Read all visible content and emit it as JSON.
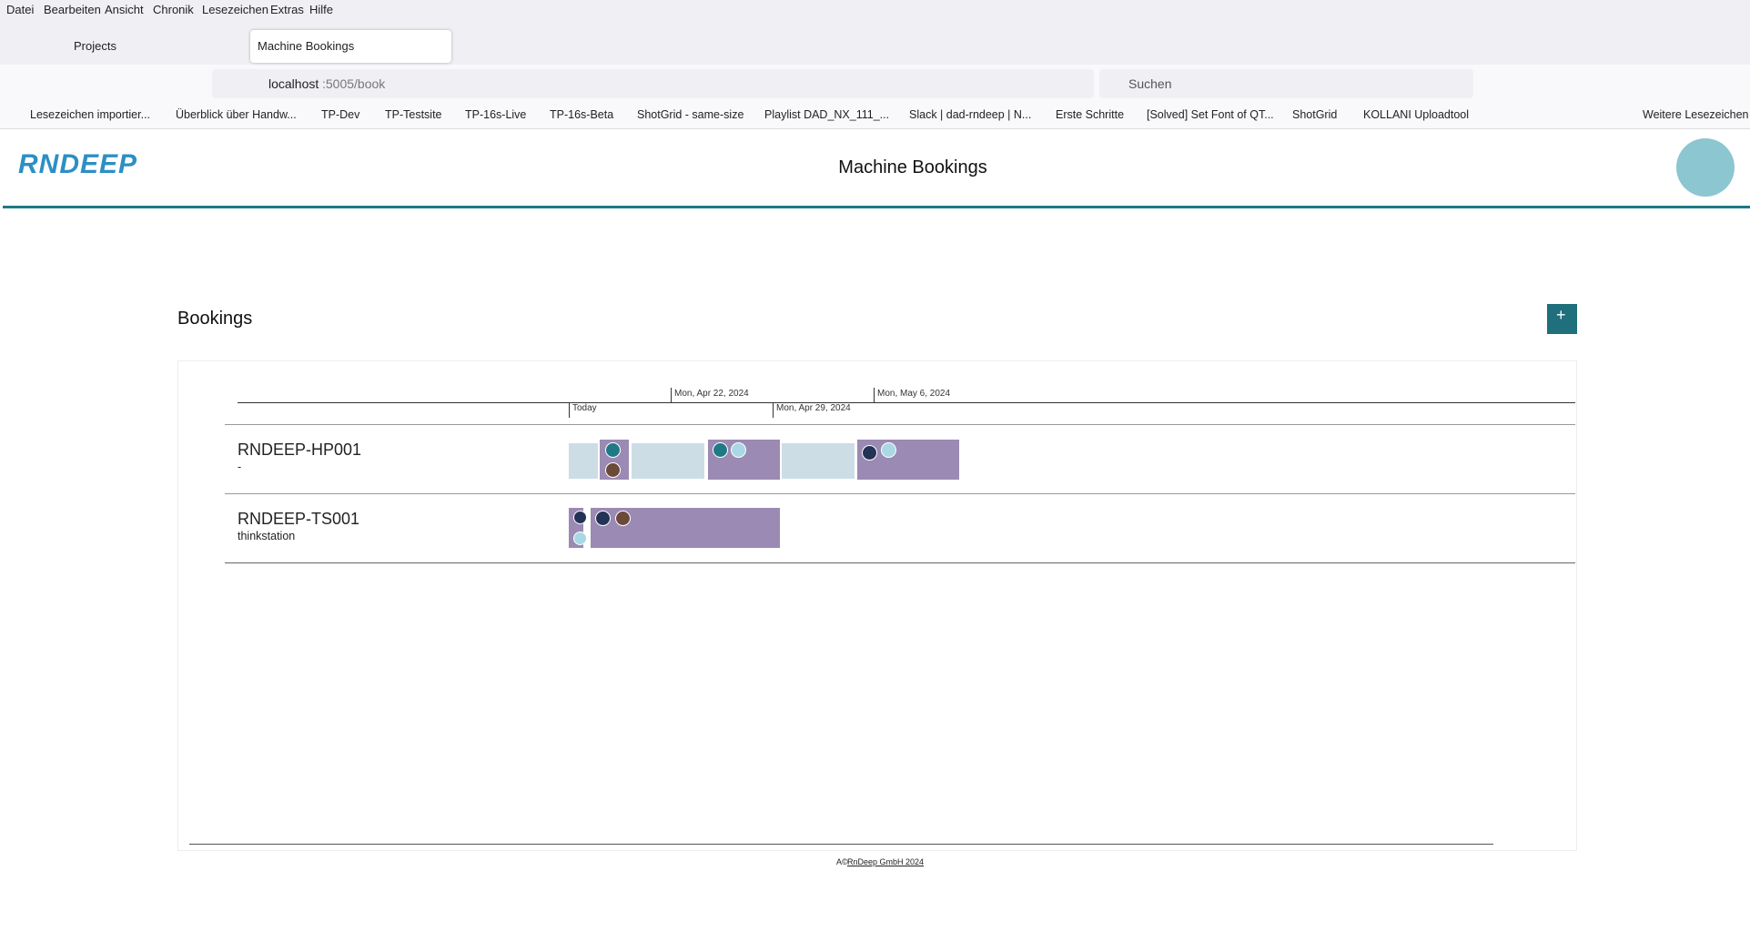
{
  "browser": {
    "menu": [
      "Datei",
      "Bearbeiten",
      "Ansicht",
      "Chronik",
      "Lesezeichen",
      "Extras",
      "Hilfe"
    ],
    "tabs": [
      "Projects",
      "Machine Bookings"
    ],
    "address": {
      "host": "localhost",
      "rest": ":5005/book"
    },
    "search": "Suchen",
    "bookmarks": [
      "Lesezeichen importier...",
      "Überblick über Handw...",
      "TP-Dev",
      "TP-Testsite",
      "TP-16s-Live",
      "TP-16s-Beta",
      "ShotGrid - same-size",
      "Playlist DAD_NX_111_...",
      "Slack | dad-rndeep | N...",
      "Erste Schritte",
      "[Solved] Set Font of QT...",
      "ShotGrid",
      "KOLLANI Uploadtool"
    ],
    "bookmarks_other": "Weitere Lesezeichen"
  },
  "app": {
    "logo": "RNDEEP",
    "title": "Machine Bookings"
  },
  "section": {
    "title": "Bookings",
    "add_button": "+"
  },
  "timeline": {
    "top_labels": [
      "Mon, Apr 22, 2024",
      "Mon, May 6, 2024"
    ],
    "bottom_labels": [
      "Today",
      "Mon, Apr 29, 2024"
    ]
  },
  "machines": [
    {
      "name": "RNDEEP-HP001",
      "description": "-"
    },
    {
      "name": "RNDEEP-TS001",
      "description": "thinkstation"
    }
  ],
  "footer": {
    "prefix": "A©",
    "link": "RnDeep GmbH 2024"
  }
}
